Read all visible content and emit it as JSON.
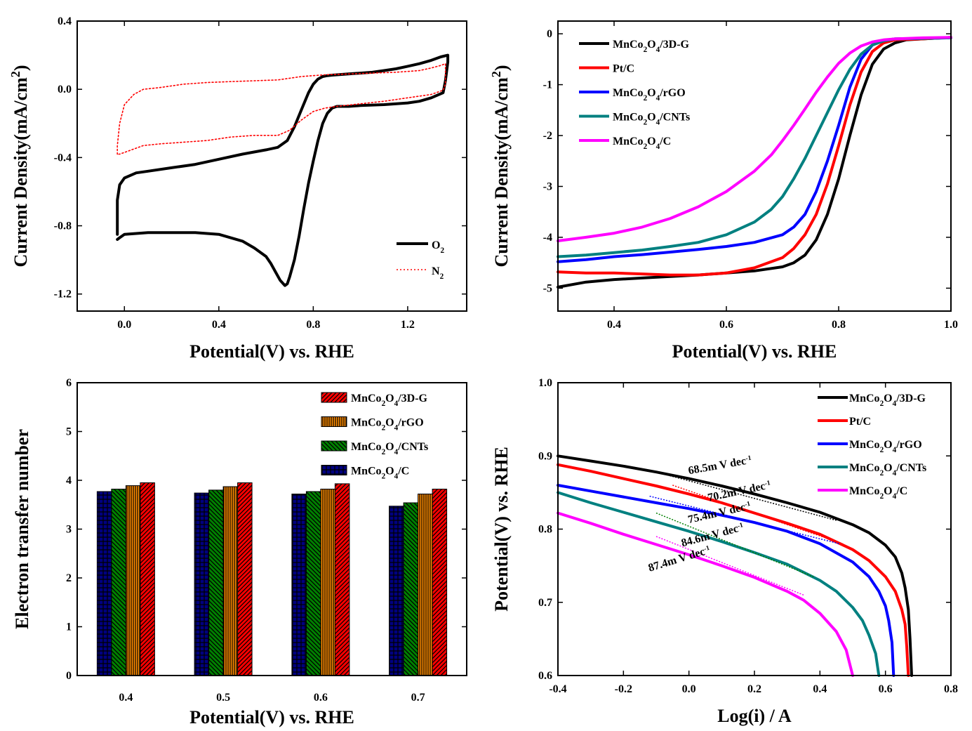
{
  "chart_data": [
    {
      "type": "line",
      "xlabel": "Potential(V) vs. RHE",
      "ylabel": "Current Density(mA/cm²)",
      "xlim": [
        -0.2,
        1.45
      ],
      "ylim": [
        -1.3,
        0.4
      ],
      "xticks": [
        0.0,
        0.4,
        0.8,
        1.2
      ],
      "xtick_labels": [
        "0.0",
        "0.4",
        "0.8",
        "1.2"
      ],
      "yticks": [
        -1.2,
        -0.8,
        -0.4,
        0.0,
        0.4
      ],
      "ytick_labels": [
        "-1.2",
        "-0.8",
        "-0.4",
        "0.0",
        "0.4"
      ],
      "legend_position": "bottom-right",
      "series": [
        {
          "name": "O₂",
          "color": "#000000",
          "style": "solid",
          "x": [
            -0.03,
            -0.03,
            -0.02,
            0.0,
            0.05,
            0.1,
            0.2,
            0.3,
            0.4,
            0.5,
            0.6,
            0.65,
            0.69,
            0.72,
            0.75,
            0.78,
            0.8,
            0.82,
            0.84,
            0.86,
            0.88,
            0.9,
            0.95,
            1.0,
            1.05,
            1.1,
            1.15,
            1.2,
            1.25,
            1.3,
            1.34,
            1.37,
            1.37,
            1.36,
            1.35,
            1.3,
            1.25,
            1.2,
            1.1,
            1.0,
            0.95,
            0.9,
            0.88,
            0.86,
            0.84,
            0.82,
            0.8,
            0.78,
            0.76,
            0.74,
            0.72,
            0.7,
            0.69,
            0.68,
            0.66,
            0.64,
            0.62,
            0.6,
            0.55,
            0.5,
            0.4,
            0.3,
            0.2,
            0.1,
            0.05,
            0.0,
            -0.02,
            -0.03
          ],
          "y": [
            -0.85,
            -0.65,
            -0.56,
            -0.52,
            -0.49,
            -0.48,
            -0.46,
            -0.44,
            -0.41,
            -0.38,
            -0.355,
            -0.34,
            -0.3,
            -0.22,
            -0.12,
            -0.02,
            0.03,
            0.06,
            0.075,
            0.08,
            0.083,
            0.085,
            0.09,
            0.095,
            0.1,
            0.11,
            0.12,
            0.135,
            0.15,
            0.17,
            0.19,
            0.2,
            0.16,
            0.05,
            -0.02,
            -0.05,
            -0.07,
            -0.08,
            -0.09,
            -0.095,
            -0.1,
            -0.1,
            -0.11,
            -0.14,
            -0.2,
            -0.3,
            -0.42,
            -0.55,
            -0.7,
            -0.86,
            -1.0,
            -1.1,
            -1.14,
            -1.15,
            -1.12,
            -1.07,
            -1.02,
            -0.98,
            -0.93,
            -0.89,
            -0.85,
            -0.84,
            -0.84,
            -0.84,
            -0.845,
            -0.85,
            -0.87,
            -0.88
          ]
        },
        {
          "name": "N₂",
          "color": "#ff0000",
          "style": "dotted",
          "x": [
            -0.03,
            -0.03,
            -0.02,
            0.0,
            0.04,
            0.08,
            0.15,
            0.25,
            0.35,
            0.45,
            0.55,
            0.65,
            0.75,
            0.85,
            0.95,
            1.05,
            1.15,
            1.25,
            1.3,
            1.34,
            1.36,
            1.36,
            1.35,
            1.3,
            1.2,
            1.1,
            1.0,
            0.9,
            0.85,
            0.8,
            0.75,
            0.7,
            0.65,
            0.55,
            0.45,
            0.35,
            0.25,
            0.15,
            0.08,
            0.04,
            0.0,
            -0.02,
            -0.03
          ],
          "y": [
            -0.38,
            -0.33,
            -0.2,
            -0.09,
            -0.03,
            0.0,
            0.01,
            0.03,
            0.04,
            0.045,
            0.05,
            0.055,
            0.075,
            0.085,
            0.09,
            0.095,
            0.1,
            0.11,
            0.125,
            0.14,
            0.15,
            0.03,
            -0.005,
            -0.03,
            -0.05,
            -0.07,
            -0.085,
            -0.1,
            -0.11,
            -0.13,
            -0.18,
            -0.24,
            -0.27,
            -0.27,
            -0.28,
            -0.3,
            -0.31,
            -0.32,
            -0.33,
            -0.35,
            -0.37,
            -0.38,
            -0.38
          ]
        }
      ]
    },
    {
      "type": "line",
      "xlabel": "Potential(V) vs. RHE",
      "ylabel": "Current Density(mA/cm²)",
      "xlim": [
        0.3,
        1.0
      ],
      "ylim": [
        -5.45,
        0.25
      ],
      "xticks": [
        0.4,
        0.6,
        0.8,
        1.0
      ],
      "xtick_labels": [
        "0.4",
        "0.6",
        "0.8",
        "1.0"
      ],
      "yticks": [
        -5,
        -4,
        -3,
        -2,
        -1,
        0
      ],
      "ytick_labels": [
        "-5",
        "-4",
        "-3",
        "-2",
        "-1",
        "0"
      ],
      "legend_position": "top-left",
      "series": [
        {
          "name": "MnCo₂O₄/3D-G",
          "color": "#000000",
          "x": [
            0.3,
            0.35,
            0.4,
            0.45,
            0.5,
            0.55,
            0.6,
            0.65,
            0.7,
            0.72,
            0.74,
            0.76,
            0.78,
            0.8,
            0.82,
            0.84,
            0.86,
            0.88,
            0.9,
            0.92,
            0.95,
            1.0
          ],
          "y": [
            -4.98,
            -4.88,
            -4.83,
            -4.8,
            -4.77,
            -4.74,
            -4.7,
            -4.66,
            -4.58,
            -4.5,
            -4.35,
            -4.05,
            -3.55,
            -2.85,
            -2.0,
            -1.2,
            -0.6,
            -0.3,
            -0.18,
            -0.12,
            -0.1,
            -0.07
          ]
        },
        {
          "name": "Pt/C",
          "color": "#ff0000",
          "x": [
            0.3,
            0.35,
            0.4,
            0.45,
            0.5,
            0.55,
            0.6,
            0.65,
            0.7,
            0.72,
            0.74,
            0.76,
            0.78,
            0.8,
            0.82,
            0.84,
            0.86,
            0.88,
            0.9,
            0.95,
            1.0
          ],
          "y": [
            -4.68,
            -4.7,
            -4.7,
            -4.72,
            -4.74,
            -4.74,
            -4.7,
            -4.6,
            -4.4,
            -4.22,
            -3.95,
            -3.55,
            -2.95,
            -2.2,
            -1.4,
            -0.75,
            -0.35,
            -0.18,
            -0.12,
            -0.1,
            -0.07
          ]
        },
        {
          "name": "MnCo₂O₄/rGO",
          "color": "#0000ff",
          "x": [
            0.3,
            0.35,
            0.4,
            0.45,
            0.5,
            0.55,
            0.6,
            0.65,
            0.7,
            0.72,
            0.74,
            0.76,
            0.78,
            0.8,
            0.82,
            0.84,
            0.86,
            0.88,
            0.9,
            0.95,
            1.0
          ],
          "y": [
            -4.48,
            -4.44,
            -4.38,
            -4.34,
            -4.29,
            -4.24,
            -4.18,
            -4.1,
            -3.95,
            -3.8,
            -3.55,
            -3.1,
            -2.5,
            -1.8,
            -1.05,
            -0.5,
            -0.22,
            -0.13,
            -0.1,
            -0.09,
            -0.08
          ]
        },
        {
          "name": "MnCo₂O₄/CNTs",
          "color": "#008080",
          "x": [
            0.3,
            0.35,
            0.4,
            0.45,
            0.5,
            0.55,
            0.6,
            0.65,
            0.68,
            0.7,
            0.72,
            0.74,
            0.76,
            0.78,
            0.8,
            0.82,
            0.84,
            0.86,
            0.88,
            0.9,
            0.95,
            1.0
          ],
          "y": [
            -4.38,
            -4.35,
            -4.3,
            -4.25,
            -4.18,
            -4.1,
            -3.95,
            -3.7,
            -3.45,
            -3.2,
            -2.85,
            -2.45,
            -2.0,
            -1.55,
            -1.1,
            -0.7,
            -0.4,
            -0.22,
            -0.14,
            -0.1,
            -0.09,
            -0.08
          ]
        },
        {
          "name": "MnCo₂O₄/C",
          "color": "#ff00ff",
          "x": [
            0.3,
            0.35,
            0.4,
            0.45,
            0.5,
            0.55,
            0.6,
            0.65,
            0.68,
            0.7,
            0.72,
            0.74,
            0.76,
            0.78,
            0.8,
            0.82,
            0.84,
            0.86,
            0.88,
            0.9,
            0.95,
            1.0
          ],
          "y": [
            -4.07,
            -4.0,
            -3.92,
            -3.8,
            -3.63,
            -3.4,
            -3.1,
            -2.7,
            -2.38,
            -2.1,
            -1.8,
            -1.48,
            -1.15,
            -0.85,
            -0.58,
            -0.38,
            -0.24,
            -0.16,
            -0.12,
            -0.1,
            -0.08,
            -0.07
          ]
        }
      ]
    },
    {
      "type": "bar",
      "xlabel": "Potential(V) vs. RHE",
      "ylabel": "Electron transfer number",
      "categories": [
        "0.4",
        "0.5",
        "0.6",
        "0.7"
      ],
      "ylim": [
        0,
        6
      ],
      "yticks": [
        0,
        1,
        2,
        3,
        4,
        5,
        6
      ],
      "ytick_labels": [
        "0",
        "1",
        "2",
        "3",
        "4",
        "5",
        "6"
      ],
      "legend_position": "top-right",
      "series": [
        {
          "name": "MnCo₂O₄/C",
          "color": "#000080",
          "values": [
            3.77,
            3.74,
            3.72,
            3.47
          ]
        },
        {
          "name": "MnCo₂O₄/CNTs",
          "color": "#008000",
          "values": [
            3.82,
            3.8,
            3.77,
            3.54
          ]
        },
        {
          "name": "MnCo₂O₄/rGO",
          "color": "#ff8c00",
          "values": [
            3.89,
            3.87,
            3.82,
            3.72
          ]
        },
        {
          "name": "MnCo₂O₄/3D-G",
          "color": "#ff0000",
          "values": [
            3.95,
            3.95,
            3.93,
            3.82
          ]
        }
      ],
      "legend_order": [
        "MnCo₂O₄/3D-G",
        "MnCo₂O₄/rGO",
        "MnCo₂O₄/CNTs",
        "MnCo₂O₄/C"
      ]
    },
    {
      "type": "line",
      "xlabel": "Log(i) / A",
      "ylabel": "Potential(V) vs. RHE",
      "xlim": [
        -0.4,
        0.8
      ],
      "ylim": [
        0.6,
        1.0
      ],
      "xticks": [
        -0.4,
        -0.2,
        0.0,
        0.2,
        0.4,
        0.6,
        0.8
      ],
      "xtick_labels": [
        "-0.4",
        "-0.2",
        "0.0",
        "0.2",
        "0.4",
        "0.6",
        "0.8"
      ],
      "yticks": [
        0.6,
        0.7,
        0.8,
        0.9,
        1.0
      ],
      "ytick_labels": [
        "0.6",
        "0.7",
        "0.8",
        "0.9",
        "1.0"
      ],
      "legend_position": "top-right",
      "series": [
        {
          "name": "MnCo₂O₄/3D-G",
          "color": "#000000",
          "x": [
            -0.4,
            -0.3,
            -0.2,
            -0.1,
            0.0,
            0.1,
            0.2,
            0.3,
            0.4,
            0.5,
            0.55,
            0.6,
            0.63,
            0.65,
            0.66,
            0.67,
            0.675,
            0.68
          ],
          "y": [
            0.9,
            0.893,
            0.886,
            0.878,
            0.869,
            0.859,
            0.848,
            0.836,
            0.823,
            0.806,
            0.795,
            0.778,
            0.762,
            0.74,
            0.72,
            0.69,
            0.65,
            0.6
          ]
        },
        {
          "name": "Pt/C",
          "color": "#ff0000",
          "x": [
            -0.4,
            -0.3,
            -0.2,
            -0.1,
            0.0,
            0.1,
            0.2,
            0.3,
            0.4,
            0.5,
            0.55,
            0.6,
            0.63,
            0.65,
            0.66,
            0.665,
            0.67
          ],
          "y": [
            0.888,
            0.879,
            0.869,
            0.859,
            0.848,
            0.836,
            0.822,
            0.808,
            0.793,
            0.772,
            0.757,
            0.735,
            0.715,
            0.69,
            0.67,
            0.64,
            0.6
          ]
        },
        {
          "name": "MnCo₂O₄/rGO",
          "color": "#0000ff",
          "x": [
            -0.4,
            -0.3,
            -0.2,
            -0.1,
            0.0,
            0.1,
            0.2,
            0.3,
            0.4,
            0.5,
            0.55,
            0.58,
            0.6,
            0.61,
            0.62,
            0.625
          ],
          "y": [
            0.86,
            0.852,
            0.844,
            0.836,
            0.828,
            0.819,
            0.809,
            0.797,
            0.78,
            0.755,
            0.735,
            0.715,
            0.695,
            0.675,
            0.645,
            0.6
          ]
        },
        {
          "name": "MnCo₂O₄/CNTs",
          "color": "#008080",
          "x": [
            -0.4,
            -0.3,
            -0.2,
            -0.1,
            0.0,
            0.1,
            0.2,
            0.3,
            0.4,
            0.45,
            0.5,
            0.53,
            0.55,
            0.57,
            0.58
          ],
          "y": [
            0.85,
            0.836,
            0.823,
            0.81,
            0.797,
            0.783,
            0.768,
            0.752,
            0.73,
            0.715,
            0.693,
            0.675,
            0.655,
            0.63,
            0.6
          ]
        },
        {
          "name": "MnCo₂O₄/C",
          "color": "#ff00ff",
          "x": [
            -0.4,
            -0.3,
            -0.2,
            -0.1,
            0.0,
            0.1,
            0.2,
            0.3,
            0.35,
            0.4,
            0.45,
            0.48,
            0.5
          ],
          "y": [
            0.822,
            0.808,
            0.793,
            0.779,
            0.765,
            0.75,
            0.734,
            0.715,
            0.703,
            0.685,
            0.66,
            0.635,
            0.6
          ]
        }
      ],
      "fit_lines": [
        {
          "color": "#000000",
          "x": [
            -0.1,
            0.45
          ],
          "y": [
            0.878,
            0.812
          ]
        },
        {
          "color": "#ff0000",
          "x": [
            -0.05,
            0.47
          ],
          "y": [
            0.86,
            0.78
          ]
        },
        {
          "color": "#0000ff",
          "x": [
            -0.12,
            0.46
          ],
          "y": [
            0.845,
            0.78
          ]
        },
        {
          "color": "#008000",
          "x": [
            -0.1,
            0.38
          ],
          "y": [
            0.822,
            0.735
          ]
        },
        {
          "color": "#ff00ff",
          "x": [
            -0.1,
            0.35
          ],
          "y": [
            0.79,
            0.71
          ]
        }
      ],
      "annotations": [
        {
          "label": "68.5m V dec",
          "superscript": "-1",
          "x": 0.0,
          "y": 0.875,
          "rotate": -10
        },
        {
          "label": "70.2m V dec",
          "superscript": "-1",
          "x": 0.06,
          "y": 0.838,
          "rotate": -12
        },
        {
          "label": "75.4m V dec",
          "superscript": "-1",
          "x": 0.0,
          "y": 0.808,
          "rotate": -13
        },
        {
          "label": "84.6m V dec",
          "superscript": "-1",
          "x": -0.02,
          "y": 0.776,
          "rotate": -15
        },
        {
          "label": "87.4m V dec",
          "superscript": "-1",
          "x": -0.12,
          "y": 0.742,
          "rotate": -17
        }
      ]
    }
  ]
}
